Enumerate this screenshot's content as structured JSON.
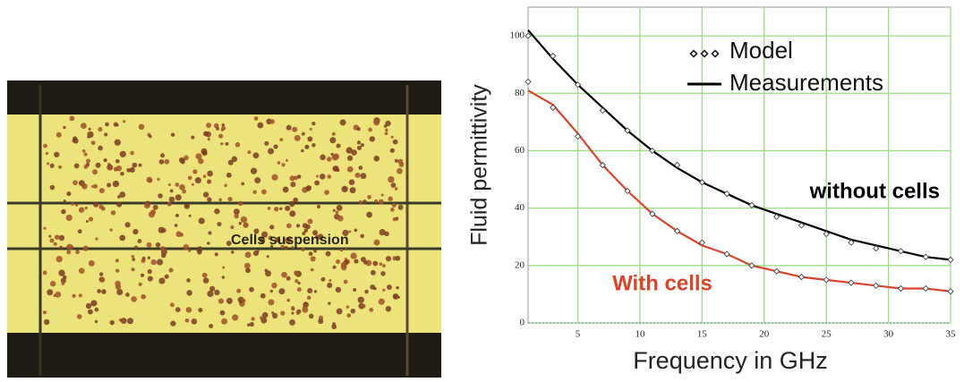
{
  "photo_label": "Cells suspension",
  "chart_data": {
    "type": "line",
    "x_label": "Frequency in GHz",
    "y_label": "Fluid permittivity",
    "x": [
      1,
      3,
      5,
      7,
      9,
      11,
      13,
      15,
      17,
      19,
      21,
      23,
      25,
      27,
      29,
      31,
      33,
      35
    ],
    "series": [
      {
        "name": "without cells",
        "color": "#000000",
        "values": [
          102,
          92,
          83,
          75,
          67,
          60,
          54,
          49,
          45,
          41,
          38,
          35,
          32,
          29,
          27,
          25,
          23,
          22
        ],
        "model_values": [
          100,
          93,
          83,
          74,
          67,
          60,
          55,
          49,
          45,
          41,
          37,
          34,
          31,
          28,
          26,
          25,
          23,
          22
        ]
      },
      {
        "name": "With cells",
        "color": "#d9442b",
        "values": [
          81,
          76,
          66,
          55,
          46,
          38,
          32,
          27,
          24,
          20,
          18,
          16,
          15,
          14,
          13,
          12,
          12,
          11
        ],
        "model_values": [
          84,
          75,
          65,
          55,
          46,
          38,
          32,
          28,
          24,
          20,
          18,
          16,
          15,
          14,
          13,
          12,
          12,
          11
        ]
      }
    ],
    "legend": [
      {
        "label": "Model",
        "style": "diamonds"
      },
      {
        "label": "Measurements",
        "style": "line"
      }
    ],
    "xlim": [
      1,
      35
    ],
    "ylim": [
      0,
      110
    ],
    "xticks": [
      5,
      10,
      15,
      20,
      25,
      30,
      35
    ],
    "yticks": [
      0,
      20,
      40,
      60,
      80,
      100
    ],
    "grid": true,
    "grid_color": "#9bdc86"
  }
}
